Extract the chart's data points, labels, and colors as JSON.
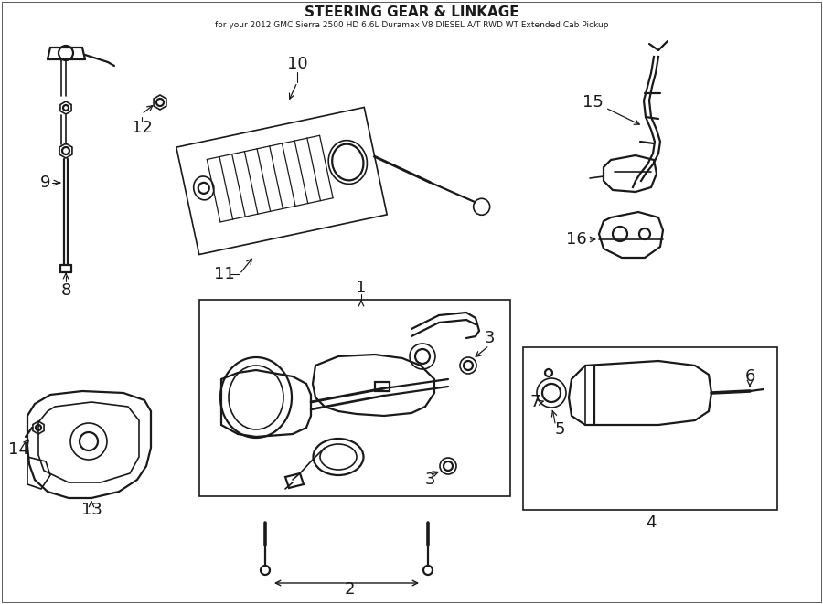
{
  "title": "STEERING GEAR & LINKAGE",
  "subtitle": "for your 2012 GMC Sierra 2500 HD 6.6L Duramax V8 DIESEL A/T RWD WT Extended Cab Pickup",
  "bg_color": "#ffffff",
  "line_color": "#1a1a1a",
  "text_color": "#1a1a1a",
  "lw_thick": 1.6,
  "lw_med": 1.2,
  "lw_thin": 0.8,
  "label_fs": 13
}
